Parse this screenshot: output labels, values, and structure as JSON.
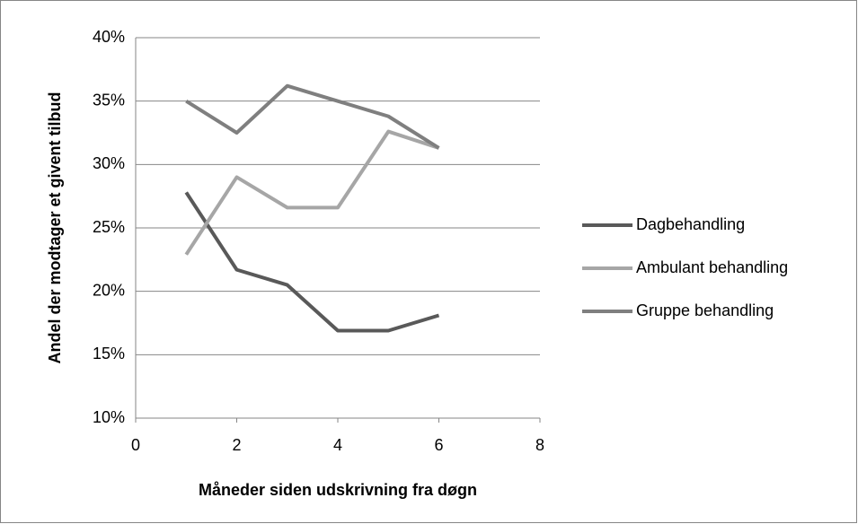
{
  "chart_data": {
    "type": "line",
    "x_label": "Måneder siden udskrivning fra døgn",
    "y_label": "Andel der modtager et givent tilbud",
    "xlim": [
      0,
      8
    ],
    "xticks": [
      0,
      2,
      4,
      6,
      8
    ],
    "ylim": [
      10,
      40
    ],
    "yticks": [
      {
        "value": 10,
        "label": "10%"
      },
      {
        "value": 15,
        "label": "15%"
      },
      {
        "value": 20,
        "label": "20%"
      },
      {
        "value": 25,
        "label": "25%"
      },
      {
        "value": 30,
        "label": "30%"
      },
      {
        "value": 35,
        "label": "35%"
      },
      {
        "value": 40,
        "label": "40%"
      }
    ],
    "grid": true,
    "legend": "right",
    "x": [
      1,
      2,
      3,
      4,
      5,
      6
    ],
    "series": [
      {
        "name": "Dagbehandling",
        "color": "#595959",
        "values": [
          27.8,
          21.7,
          20.5,
          16.9,
          16.9,
          18.1
        ]
      },
      {
        "name": "Ambulant behandling",
        "color": "#a6a6a6",
        "values": [
          22.9,
          29.0,
          26.6,
          26.6,
          32.6,
          31.3
        ]
      },
      {
        "name": "Gruppe behandling",
        "color": "#7f7f7f",
        "values": [
          35.0,
          32.5,
          36.2,
          35.0,
          33.8,
          31.3
        ]
      }
    ]
  }
}
